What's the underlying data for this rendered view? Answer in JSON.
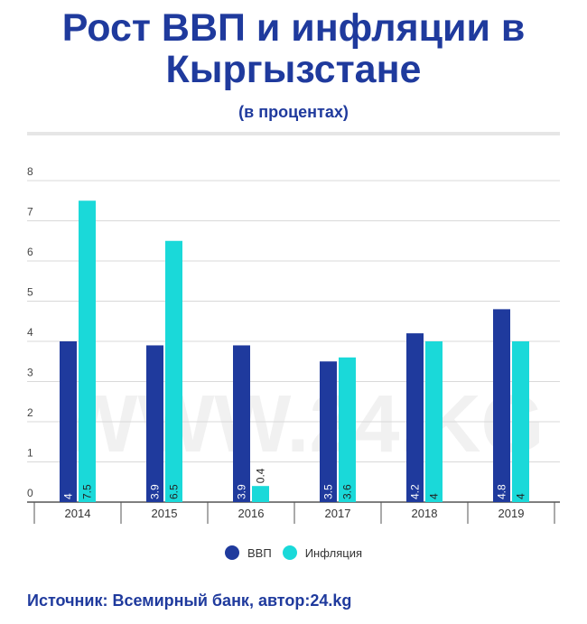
{
  "title": "Рост ВВП и инфляции в Кыргызстане",
  "subtitle": "(в процентах)",
  "source": "Источник: Всемирный банк, автор:24.kg",
  "watermark": "WWW.24.KG",
  "colors": {
    "title": "#1f3a9d",
    "gdp": "#1f3a9d",
    "inflation": "#1ad9d9",
    "grid": "#d9d9d9"
  },
  "chart_data": {
    "type": "bar",
    "categories": [
      "2014",
      "2015",
      "2016",
      "2017",
      "2018",
      "2019"
    ],
    "series": [
      {
        "name": "ВВП",
        "values": [
          4,
          3.9,
          3.9,
          3.5,
          4.2,
          4.8
        ]
      },
      {
        "name": "Инфляция",
        "values": [
          7.5,
          6.5,
          0.4,
          3.6,
          4,
          4
        ]
      }
    ],
    "yticks": [
      "0",
      "1",
      "2",
      "3",
      "4",
      "5",
      "6",
      "7",
      "8"
    ],
    "ylim": [
      0,
      8
    ],
    "grid": true,
    "legend": "bottom-center"
  }
}
